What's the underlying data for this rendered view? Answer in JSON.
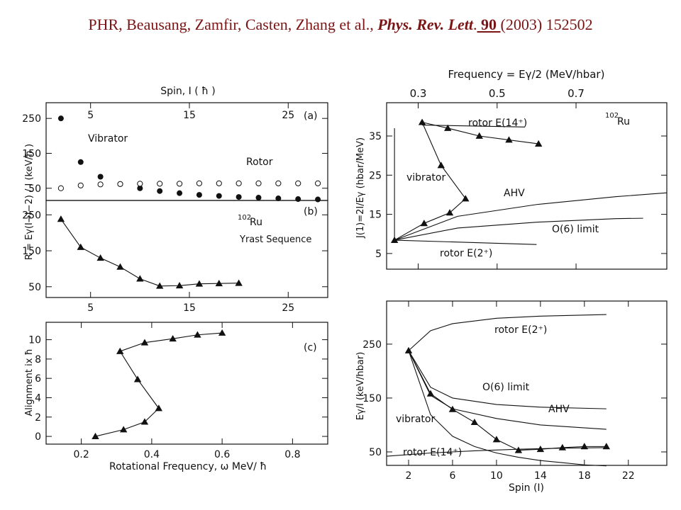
{
  "header": {
    "authors": "PHR, Beausang, Zamfir, Casten, Zhang et al.,",
    "journal": "Phys. Rev. Lett",
    "dot": ".",
    "volume": " 90 ",
    "rest": "(2003) 152502"
  },
  "chart_data": [
    {
      "id": "a",
      "type": "scatter",
      "xlabel_top": "Spin, I ( ħ )",
      "ylabel": "R = Eγ(I→I−2) / I (keV/ħ )",
      "panel_label": "(a)",
      "xlim": [
        0.5,
        29
      ],
      "ylim": [
        15,
        295
      ],
      "xticks": [
        5,
        15,
        25
      ],
      "yticks": [
        50,
        150,
        250
      ],
      "series": [
        {
          "name": "Vibrator",
          "marker": "filled-circle",
          "x": [
            2,
            4,
            6,
            8,
            10,
            12,
            14,
            16,
            18,
            20,
            22,
            24,
            26,
            28
          ],
          "y": [
            250,
            125,
            83,
            62,
            50,
            42,
            36,
            31,
            28,
            25,
            23,
            21,
            19,
            18
          ]
        },
        {
          "name": "Rotor",
          "marker": "open-circle",
          "x": [
            2,
            4,
            6,
            8,
            10,
            12,
            14,
            16,
            18,
            20,
            22,
            24,
            26,
            28
          ],
          "y": [
            50,
            58,
            61,
            62,
            63,
            63,
            63,
            64,
            64,
            64,
            64,
            64,
            64,
            64
          ]
        }
      ]
    },
    {
      "id": "b",
      "type": "line",
      "panel_label": "(b)",
      "nucleus_mass": "102",
      "nucleus_symbol": "Ru",
      "annotation": "Yrast Sequence",
      "xlim": [
        0.5,
        29
      ],
      "ylim": [
        20,
        290
      ],
      "xticks": [
        5,
        15,
        25
      ],
      "yticks": [
        50,
        150,
        250
      ],
      "series": [
        {
          "marker": "filled-triangle",
          "x": [
            2,
            4,
            6,
            8,
            10,
            12,
            14,
            16,
            18,
            20
          ],
          "y": [
            238,
            160,
            130,
            105,
            72,
            52,
            53,
            58,
            59,
            60
          ]
        }
      ]
    },
    {
      "id": "c",
      "type": "line",
      "panel_label": "(c)",
      "xlabel": "Rotational Frequency, ω MeV/ ħ",
      "ylabel": "Alignment ix ħ",
      "xlim": [
        0.1,
        0.9
      ],
      "ylim": [
        -0.8,
        11.8
      ],
      "xticks": [
        0.2,
        0.4,
        0.6,
        0.8
      ],
      "xtick_labels": [
        "0.2",
        "0.4",
        "0.6",
        "0.8"
      ],
      "yticks": [
        0,
        2,
        4,
        6,
        8,
        10
      ],
      "series": [
        {
          "marker": "filled-triangle",
          "x": [
            0.24,
            0.32,
            0.38,
            0.42,
            0.36,
            0.31,
            0.38,
            0.46,
            0.53,
            0.6
          ],
          "y": [
            0,
            0.7,
            1.5,
            2.9,
            5.9,
            8.8,
            9.7,
            10.1,
            10.5,
            10.7
          ]
        }
      ]
    },
    {
      "id": "d",
      "type": "line",
      "xlabel_top": "Frequency = Eγ/2 (MeV/hbar)",
      "ylabel": "J(1)=2I/Eγ (hbar/MeV)",
      "nucleus_mass": "102",
      "nucleus_symbol": "Ru",
      "xlim": [
        0.22,
        0.93
      ],
      "ylim": [
        1,
        43.5
      ],
      "xticks": [
        0.3,
        0.5,
        0.7
      ],
      "xtick_labels": [
        "0.3",
        "0.5",
        "0.7"
      ],
      "yticks": [
        5,
        15,
        25,
        35
      ],
      "labels": {
        "vibrator": "vibrator",
        "ahv": "AHV",
        "o6": "O(6) limit",
        "rotor14": "rotor E(14⁺)",
        "rotor2": "rotor E(2⁺)"
      },
      "series": [
        {
          "name": "data",
          "marker": "filled-triangle",
          "x": [
            0.24,
            0.315,
            0.38,
            0.42,
            0.358,
            0.31,
            0.375,
            0.455,
            0.53,
            0.605
          ],
          "y": [
            8.4,
            12.7,
            15.4,
            19.0,
            27.5,
            38.5,
            37.0,
            35.0,
            34.0,
            33.0
          ]
        },
        {
          "name": "vibrator",
          "x": [
            0.24,
            0.24
          ],
          "y": [
            8.4,
            37
          ]
        },
        {
          "name": "AHV",
          "x": [
            0.24,
            0.4,
            0.6,
            0.8,
            0.93
          ],
          "y": [
            8.4,
            14.5,
            17.5,
            19.5,
            20.5
          ]
        },
        {
          "name": "O(6) limit",
          "x": [
            0.24,
            0.4,
            0.6,
            0.8,
            0.87
          ],
          "y": [
            8.4,
            11.5,
            13.0,
            13.9,
            14.0
          ]
        },
        {
          "name": "rotor E(14+)",
          "x": [
            0.31,
            0.57
          ],
          "y": [
            37.8,
            37.3
          ]
        },
        {
          "name": "rotor E(2+)",
          "x": [
            0.24,
            0.6
          ],
          "y": [
            8.4,
            7.3
          ]
        }
      ]
    },
    {
      "id": "e",
      "type": "line",
      "xlabel": "Spin (I)",
      "ylabel": "Eγ/I (keV/hbar)",
      "xlim": [
        0,
        25.5
      ],
      "ylim": [
        25,
        330
      ],
      "xticks": [
        2,
        6,
        10,
        14,
        18,
        22
      ],
      "yticks": [
        50,
        150,
        250
      ],
      "labels": {
        "vibrator": "vibrator",
        "ahv": "AHV",
        "o6": "O(6) limit",
        "rotor14": "rotor E(14⁺)",
        "rotor2": "rotor E(2⁺)"
      },
      "series": [
        {
          "name": "data",
          "marker": "filled-triangle",
          "x": [
            2,
            4,
            6,
            8,
            10,
            12,
            14,
            16,
            18,
            20
          ],
          "y": [
            238,
            158,
            129,
            105,
            73,
            53,
            55,
            58,
            60,
            60
          ]
        },
        {
          "name": "rotor E(2+)",
          "x": [
            2,
            4,
            6,
            10,
            14,
            20
          ],
          "y": [
            238,
            275,
            288,
            298,
            302,
            305
          ]
        },
        {
          "name": "O(6) limit",
          "x": [
            2,
            4,
            6,
            10,
            14,
            20
          ],
          "y": [
            238,
            170,
            150,
            138,
            133,
            130
          ]
        },
        {
          "name": "AHV",
          "x": [
            2,
            4,
            6,
            10,
            14,
            20
          ],
          "y": [
            238,
            155,
            130,
            112,
            100,
            92
          ]
        },
        {
          "name": "vibrator",
          "x": [
            2,
            4,
            6,
            8,
            10,
            12,
            14,
            16,
            18,
            20
          ],
          "y": [
            238,
            119,
            79,
            60,
            48,
            40,
            34,
            30,
            26,
            24
          ]
        },
        {
          "name": "rotor E(14+)",
          "x": [
            0,
            4,
            8,
            12,
            16,
            20
          ],
          "y": [
            42,
            48,
            52,
            55,
            57,
            58
          ]
        }
      ]
    }
  ]
}
